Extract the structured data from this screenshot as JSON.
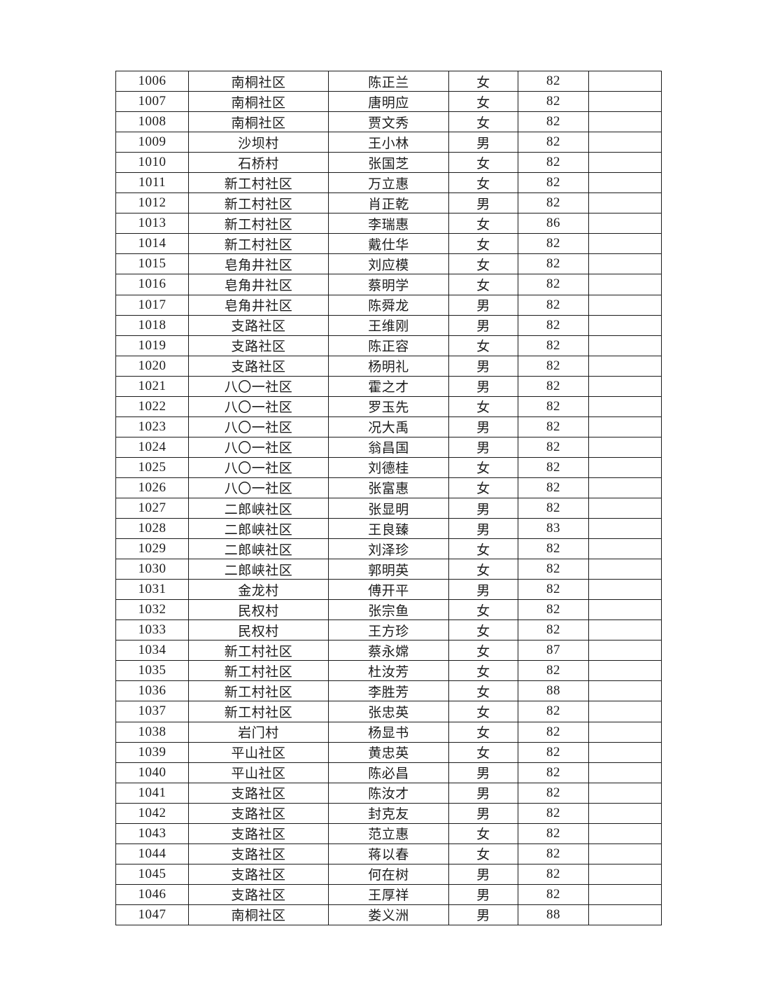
{
  "table": {
    "rows": [
      [
        "1006",
        "南桐社区",
        "陈正兰",
        "女",
        "82",
        ""
      ],
      [
        "1007",
        "南桐社区",
        "唐明应",
        "女",
        "82",
        ""
      ],
      [
        "1008",
        "南桐社区",
        "贾文秀",
        "女",
        "82",
        ""
      ],
      [
        "1009",
        "沙坝村",
        "王小林",
        "男",
        "82",
        ""
      ],
      [
        "1010",
        "石桥村",
        "张国芝",
        "女",
        "82",
        ""
      ],
      [
        "1011",
        "新工村社区",
        "万立惠",
        "女",
        "82",
        ""
      ],
      [
        "1012",
        "新工村社区",
        "肖正乾",
        "男",
        "82",
        ""
      ],
      [
        "1013",
        "新工村社区",
        "李瑞惠",
        "女",
        "86",
        ""
      ],
      [
        "1014",
        "新工村社区",
        "戴仕华",
        "女",
        "82",
        ""
      ],
      [
        "1015",
        "皂角井社区",
        "刘应模",
        "女",
        "82",
        ""
      ],
      [
        "1016",
        "皂角井社区",
        "蔡明学",
        "女",
        "82",
        ""
      ],
      [
        "1017",
        "皂角井社区",
        "陈舜龙",
        "男",
        "82",
        ""
      ],
      [
        "1018",
        "支路社区",
        "王维刚",
        "男",
        "82",
        ""
      ],
      [
        "1019",
        "支路社区",
        "陈正容",
        "女",
        "82",
        ""
      ],
      [
        "1020",
        "支路社区",
        "杨明礼",
        "男",
        "82",
        ""
      ],
      [
        "1021",
        "八〇一社区",
        "霍之才",
        "男",
        "82",
        ""
      ],
      [
        "1022",
        "八〇一社区",
        "罗玉先",
        "女",
        "82",
        ""
      ],
      [
        "1023",
        "八〇一社区",
        "况大禹",
        "男",
        "82",
        ""
      ],
      [
        "1024",
        "八〇一社区",
        "翁昌国",
        "男",
        "82",
        ""
      ],
      [
        "1025",
        "八〇一社区",
        "刘德桂",
        "女",
        "82",
        ""
      ],
      [
        "1026",
        "八〇一社区",
        "张富惠",
        "女",
        "82",
        ""
      ],
      [
        "1027",
        "二郎峡社区",
        "张显明",
        "男",
        "82",
        ""
      ],
      [
        "1028",
        "二郎峡社区",
        "王良臻",
        "男",
        "83",
        ""
      ],
      [
        "1029",
        "二郎峡社区",
        "刘泽珍",
        "女",
        "82",
        ""
      ],
      [
        "1030",
        "二郎峡社区",
        "郭明英",
        "女",
        "82",
        ""
      ],
      [
        "1031",
        "金龙村",
        "傅开平",
        "男",
        "82",
        ""
      ],
      [
        "1032",
        "民权村",
        "张宗鱼",
        "女",
        "82",
        ""
      ],
      [
        "1033",
        "民权村",
        "王方珍",
        "女",
        "82",
        ""
      ],
      [
        "1034",
        "新工村社区",
        "蔡永嫦",
        "女",
        "87",
        ""
      ],
      [
        "1035",
        "新工村社区",
        "杜汝芳",
        "女",
        "82",
        ""
      ],
      [
        "1036",
        "新工村社区",
        "李胜芳",
        "女",
        "88",
        ""
      ],
      [
        "1037",
        "新工村社区",
        "张忠英",
        "女",
        "82",
        ""
      ],
      [
        "1038",
        "岩门村",
        "杨显书",
        "女",
        "82",
        ""
      ],
      [
        "1039",
        "平山社区",
        "黄忠英",
        "女",
        "82",
        ""
      ],
      [
        "1040",
        "平山社区",
        "陈必昌",
        "男",
        "82",
        ""
      ],
      [
        "1041",
        "支路社区",
        "陈汝才",
        "男",
        "82",
        ""
      ],
      [
        "1042",
        "支路社区",
        "封克友",
        "男",
        "82",
        ""
      ],
      [
        "1043",
        "支路社区",
        "范立惠",
        "女",
        "82",
        ""
      ],
      [
        "1044",
        "支路社区",
        "蒋以春",
        "女",
        "82",
        ""
      ],
      [
        "1045",
        "支路社区",
        "何在树",
        "男",
        "82",
        ""
      ],
      [
        "1046",
        "支路社区",
        "王厚祥",
        "男",
        "82",
        ""
      ],
      [
        "1047",
        "南桐社区",
        "娄义洲",
        "男",
        "88",
        ""
      ]
    ]
  }
}
